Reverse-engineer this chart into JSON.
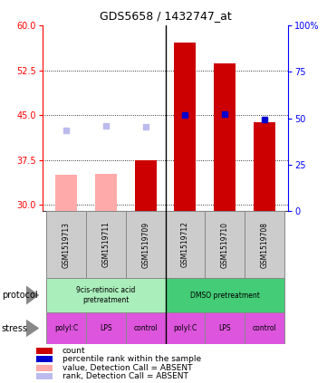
{
  "title": "GDS5658 / 1432747_at",
  "samples": [
    "GSM1519713",
    "GSM1519711",
    "GSM1519709",
    "GSM1519712",
    "GSM1519710",
    "GSM1519708"
  ],
  "count_values": [
    35.0,
    35.2,
    37.5,
    57.2,
    53.6,
    43.8
  ],
  "count_absent": [
    true,
    true,
    false,
    false,
    false,
    false
  ],
  "rank_values": [
    42.5,
    43.2,
    43.0,
    45.0,
    45.2,
    44.3
  ],
  "rank_absent": [
    true,
    true,
    true,
    false,
    false,
    false
  ],
  "ylim_left": [
    29,
    60
  ],
  "ylim_right": [
    0,
    100
  ],
  "yticks_left": [
    30,
    37.5,
    45,
    52.5,
    60
  ],
  "yticks_right": [
    0,
    25,
    50,
    75,
    100
  ],
  "bar_color_dark": "#cc0000",
  "bar_color_light": "#ffaaaa",
  "rank_color_dark": "#0000cc",
  "rank_color_light": "#bbbbee",
  "protocol_groups": [
    {
      "label": "9cis-retinoic acid\npretreatment",
      "color": "#aaeebb",
      "start": 0,
      "end": 2
    },
    {
      "label": "DMSO pretreatment",
      "color": "#44cc77",
      "start": 3,
      "end": 5
    }
  ],
  "stress_labels": [
    "polyI:C",
    "LPS",
    "control",
    "polyI:C",
    "LPS",
    "control"
  ],
  "stress_color": "#dd55dd",
  "sample_box_color": "#cccccc",
  "legend_items": [
    {
      "color": "#cc0000",
      "label": "count"
    },
    {
      "color": "#0000cc",
      "label": "percentile rank within the sample"
    },
    {
      "color": "#ffaaaa",
      "label": "value, Detection Call = ABSENT"
    },
    {
      "color": "#bbbbee",
      "label": "rank, Detection Call = ABSENT"
    }
  ]
}
